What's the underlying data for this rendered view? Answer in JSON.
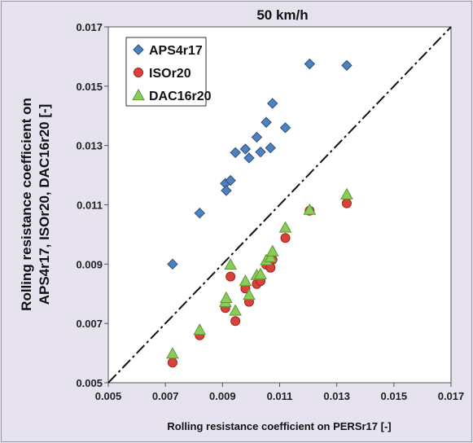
{
  "chart_data": {
    "type": "scatter",
    "title": "50 km/h",
    "xlabel": "Rolling resistance coefficient on PERSr17 [-]",
    "ylabel_line1": "Rolling resistance coefficient on",
    "ylabel_line2": "APS4r17, ISOr20, DAC16r20  [-]",
    "xlim": [
      0.005,
      0.017
    ],
    "ylim": [
      0.005,
      0.017
    ],
    "xticks": [
      "0.005",
      "0.007",
      "0.009",
      "0.011",
      "0.013",
      "0.015",
      "0.017"
    ],
    "yticks": [
      "0.005",
      "0.007",
      "0.009",
      "0.011",
      "0.013",
      "0.015",
      "0.017"
    ],
    "grid": false,
    "legend_position": "top-left",
    "reference_line": {
      "style": "dash-dot",
      "from": [
        0.005,
        0.005
      ],
      "to": [
        0.017,
        0.017
      ]
    },
    "series": [
      {
        "name": "APS4r17",
        "marker": "diamond",
        "color": "#4f81bd",
        "stroke": "#2a4f7e",
        "x": [
          0.00725,
          0.0082,
          0.0091,
          0.00913,
          0.00928,
          0.00945,
          0.0098,
          0.00993,
          0.0102,
          0.01033,
          0.01053,
          0.01068,
          0.01075,
          0.0112,
          0.01205,
          0.01335
        ],
        "y": [
          0.009,
          0.01072,
          0.01172,
          0.01148,
          0.01182,
          0.01276,
          0.01288,
          0.01258,
          0.01328,
          0.01278,
          0.01378,
          0.01292,
          0.01442,
          0.0136,
          0.01575,
          0.0157
        ]
      },
      {
        "name": "ISOr20",
        "marker": "circle",
        "color": "#d9413b",
        "stroke": "#a02520",
        "x": [
          0.00725,
          0.0082,
          0.0091,
          0.00928,
          0.00945,
          0.0098,
          0.00993,
          0.0102,
          0.01033,
          0.01053,
          0.01068,
          0.01075,
          0.0112,
          0.01205,
          0.01335
        ],
        "y": [
          0.00568,
          0.0066,
          0.00752,
          0.00858,
          0.00708,
          0.00818,
          0.00773,
          0.00833,
          0.00843,
          0.00898,
          0.00888,
          0.00915,
          0.00988,
          0.0108,
          0.01105
        ]
      },
      {
        "name": "DAC16r20",
        "marker": "triangle",
        "color": "#8ccb5a",
        "stroke": "#5a9a2e",
        "x": [
          0.00725,
          0.0082,
          0.0091,
          0.00913,
          0.00928,
          0.00945,
          0.0098,
          0.00993,
          0.0102,
          0.01033,
          0.01053,
          0.01068,
          0.01075,
          0.0112,
          0.01205,
          0.01335
        ],
        "y": [
          0.00598,
          0.00678,
          0.00772,
          0.00786,
          0.00898,
          0.00743,
          0.00843,
          0.00796,
          0.00863,
          0.00866,
          0.00913,
          0.00923,
          0.00943,
          0.01023,
          0.01083,
          0.01135
        ]
      }
    ]
  }
}
